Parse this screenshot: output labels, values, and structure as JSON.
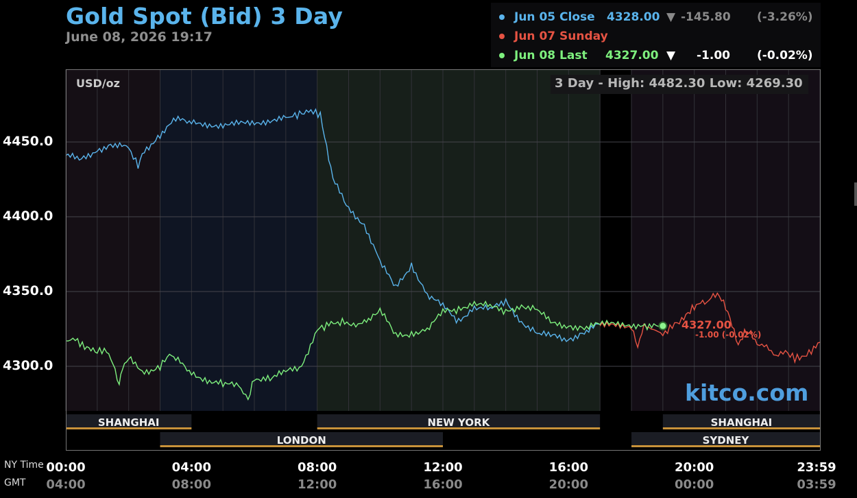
{
  "title": "Gold Spot (Bid) 3 Day",
  "timestamp": "June 08, 2026 19:17",
  "legend": [
    {
      "label": "Jun 05 Close",
      "value": "4328.00",
      "arrow": "▼",
      "change": "-145.80",
      "pct": "(-3.26%)",
      "color": "#5ab4ec",
      "value_color": "#5ab4ec",
      "change_color": "#8a8a8a"
    },
    {
      "label": "Jun 07 Sunday",
      "value": "",
      "arrow": "",
      "change": "",
      "pct": "",
      "color": "#e65343",
      "value_color": "#e65343",
      "change_color": "#e65343"
    },
    {
      "label": "Jun 08 Last",
      "value": "4327.00",
      "arrow": "▼",
      "change": "-1.00",
      "pct": "(-0.02%)",
      "color": "#7ef07e",
      "value_color": "#7ef07e",
      "change_color": "#ffffff"
    }
  ],
  "unit": "USD/oz",
  "high_low": "3 Day - High: 4482.30  Low: 4269.30",
  "brand": "kitco.com",
  "axis_names": {
    "ny": "NY Time",
    "gmt": "GMT"
  },
  "last_marker": {
    "value": "4327.00",
    "change": "-1.00 (-0.02%)"
  },
  "colors": {
    "blue": "#5ab4ec",
    "red": "#e65343",
    "green": "#7ef07e",
    "session_bar": "#c8923a"
  },
  "chart_data": {
    "type": "line",
    "ylim": [
      4260,
      4500
    ],
    "y_ticks": [
      4300,
      4350,
      4400,
      4450
    ],
    "y_tick_labels": [
      "4300.0",
      "4350.0",
      "4400.0",
      "4450.0"
    ],
    "x_range_hours": [
      0,
      24
    ],
    "x_ticks": [
      0,
      4,
      8,
      12,
      16,
      20,
      24
    ],
    "ny_tick_labels": [
      "00:00",
      "04:00",
      "08:00",
      "12:00",
      "16:00",
      "20:00",
      "23:59"
    ],
    "gmt_tick_labels": [
      "04:00",
      "08:00",
      "12:00",
      "16:00",
      "20:00",
      "00:00",
      "03:59"
    ],
    "sessions": [
      {
        "name": "SHANGHAI",
        "start": 0,
        "end": 4,
        "row": 1
      },
      {
        "name": "NEW YORK",
        "start": 8,
        "end": 17,
        "row": 1
      },
      {
        "name": "SHANGHAI",
        "start": 19,
        "end": 24,
        "row": 1
      },
      {
        "name": "LONDON",
        "start": 3,
        "end": 12,
        "row": 2
      },
      {
        "name": "SYDNEY",
        "start": 18,
        "end": 24,
        "row": 2
      }
    ],
    "series": [
      {
        "name": "Jun 05 Close",
        "color": "#5ab4ec",
        "x": [
          0,
          0.5,
          1,
          1.5,
          2,
          2.3,
          2.5,
          3,
          3.5,
          4,
          5,
          6,
          7,
          7.8,
          8.1,
          8.5,
          9,
          9.5,
          10,
          10.5,
          11,
          11.5,
          12,
          12.5,
          13,
          13.5,
          14,
          14.5,
          15,
          15.5,
          16,
          16.5,
          17
        ],
        "y": [
          4441,
          4438,
          4445,
          4448,
          4446,
          4434,
          4444,
          4455,
          4465,
          4463,
          4461,
          4463,
          4466,
          4471,
          4468,
          4425,
          4405,
          4395,
          4370,
          4352,
          4368,
          4348,
          4340,
          4330,
          4340,
          4338,
          4343,
          4330,
          4322,
          4320,
          4318,
          4323,
          4328
        ]
      },
      {
        "name": "Jun 07 Sunday",
        "color": "#e65343",
        "x": [
          17,
          18,
          18.2,
          18.4,
          18.7,
          19,
          19.3,
          19.6,
          20,
          20.2,
          20.4,
          20.6,
          20.8,
          21,
          21.2,
          21.4,
          21.6,
          21.8,
          22,
          22.3,
          22.6,
          22.9,
          23.2,
          23.5,
          23.8,
          24
        ],
        "y": [
          4327,
          4327,
          4313,
          4327,
          4325,
          4321,
          4327,
          4331,
          4340,
          4344,
          4343,
          4348,
          4347,
          4339,
          4327,
          4313,
          4322,
          4322,
          4315,
          4313,
          4307,
          4310,
          4305,
          4307,
          4311,
          4316
        ]
      },
      {
        "name": "Jun 08 Last",
        "color": "#7ef07e",
        "x": [
          0,
          0.3,
          0.6,
          1,
          1.3,
          1.5,
          1.7,
          1.8,
          2,
          2.5,
          3,
          3.3,
          3.5,
          4,
          4.5,
          5,
          5.5,
          5.8,
          6,
          6.5,
          7,
          7.5,
          8,
          8.3,
          8.8,
          9.3,
          9.7,
          10,
          10.5,
          11,
          11.5,
          12,
          12.5,
          13,
          13.5,
          14,
          14.5,
          15,
          15.5,
          16,
          16.5,
          17,
          18,
          18.5,
          19
        ],
        "y": [
          4317,
          4318,
          4313,
          4310,
          4311,
          4303,
          4288,
          4298,
          4305,
          4296,
          4300,
          4308,
          4305,
          4295,
          4291,
          4288,
          4287,
          4278,
          4292,
          4292,
          4296,
          4300,
          4325,
          4327,
          4330,
          4328,
          4332,
          4338,
          4320,
          4322,
          4325,
          4336,
          4338,
          4343,
          4340,
          4336,
          4341,
          4338,
          4328,
          4327,
          4326,
          4328,
          4328,
          4326,
          4327
        ]
      }
    ]
  }
}
